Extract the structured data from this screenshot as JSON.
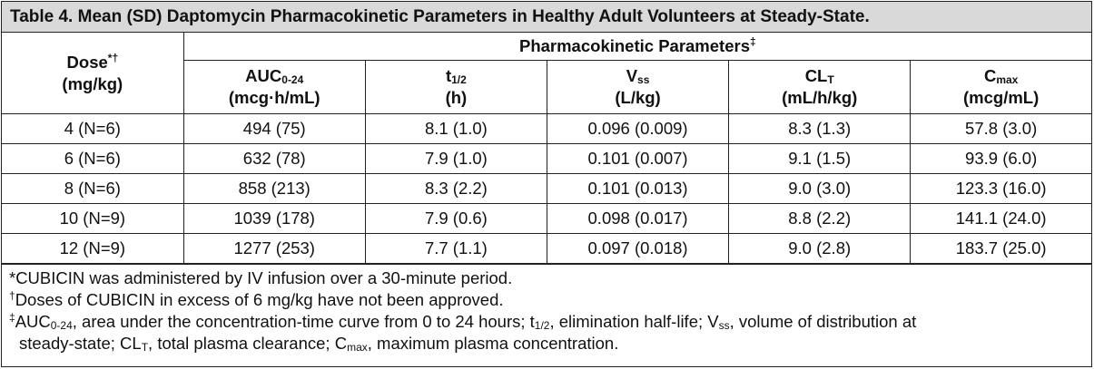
{
  "title": "Table 4. Mean (SD) Daptomycin Pharmacokinetic Parameters in Healthy Adult Volunteers at Steady-State.",
  "header": {
    "dose_label": "Dose",
    "dose_marks": "*†",
    "dose_unit": "(mg/kg)",
    "group_label": "Pharmacokinetic Parameters",
    "group_mark": "‡",
    "columns": [
      {
        "main": "AUC",
        "sub": "0-24",
        "unit": "(mcg·h/mL)"
      },
      {
        "main": "t",
        "sub": "1/2",
        "unit": "(h)"
      },
      {
        "main": "V",
        "sub": "ss",
        "unit": "(L/kg)"
      },
      {
        "main": "CL",
        "sub": "T",
        "unit": "(mL/h/kg)"
      },
      {
        "main": "C",
        "sub": "max",
        "unit": "(mcg/mL)"
      }
    ]
  },
  "rows": [
    {
      "dose": "4 (N=6)",
      "values": [
        "494 (75)",
        "8.1 (1.0)",
        "0.096 (0.009)",
        "8.3 (1.3)",
        "57.8 (3.0)"
      ]
    },
    {
      "dose": "6 (N=6)",
      "values": [
        "632 (78)",
        "7.9 (1.0)",
        "0.101 (0.007)",
        "9.1 (1.5)",
        "93.9 (6.0)"
      ]
    },
    {
      "dose": "8 (N=6)",
      "values": [
        "858 (213)",
        "8.3 (2.2)",
        "0.101 (0.013)",
        "9.0 (3.0)",
        "123.3 (16.0)"
      ]
    },
    {
      "dose": "10 (N=9)",
      "values": [
        "1039 (178)",
        "7.9 (0.6)",
        "0.098 (0.017)",
        "8.8 (2.2)",
        "141.1 (24.0)"
      ]
    },
    {
      "dose": "12 (N=9)",
      "values": [
        "1277 (253)",
        "7.7 (1.1)",
        "0.097 (0.018)",
        "9.0 (2.8)",
        "183.7 (25.0)"
      ]
    }
  ],
  "footnotes": {
    "f1": "*CUBICIN was administered by IV infusion over a 30-minute period.",
    "f2_mark": "†",
    "f2": "Doses of CUBICIN in excess of 6 mg/kg have not been approved.",
    "f3_mark": "‡",
    "f3_a": "AUC",
    "f3_a_sub": "0-24",
    "f3_b": ", area under the concentration-time curve from 0 to 24 hours; t",
    "f3_b_sub": "1/2",
    "f3_c": ", elimination half-life; V",
    "f3_c_sub": "ss",
    "f3_d": ", volume of distribution at",
    "f3_e": "steady-state; CL",
    "f3_e_sub": "T",
    "f3_f": ", total plasma clearance; C",
    "f3_f_sub": "max",
    "f3_g": ", maximum plasma concentration."
  }
}
